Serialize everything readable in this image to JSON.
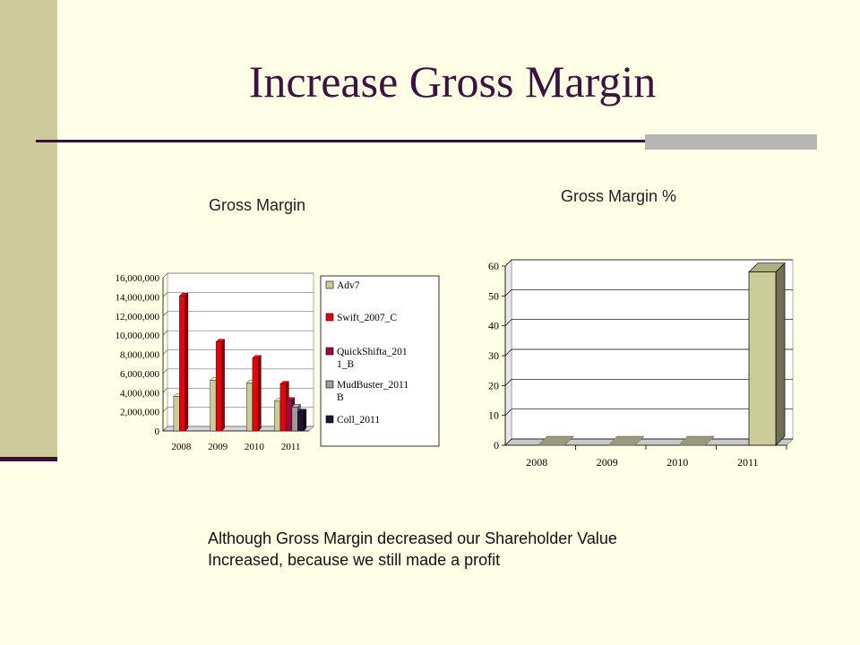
{
  "slide": {
    "title": "Increase Gross Margin",
    "note_lines": [
      "Although Gross Margin decreased our Shareholder Value",
      "Increased, because we still made a profit"
    ]
  },
  "chart_data": [
    {
      "type": "bar",
      "title": "Gross Margin",
      "categories": [
        "2008",
        "2009",
        "2010",
        "2011"
      ],
      "ylim": [
        0,
        16000000
      ],
      "yticks": [
        "0",
        "2,000,000",
        "4,000,000",
        "6,000,000",
        "8,000,000",
        "10,000,000",
        "12,000,000",
        "14,000,000",
        "16,000,000"
      ],
      "legend_position": "right",
      "grid": true,
      "series": [
        {
          "name": "Adv7",
          "color": "#CCCC99",
          "values": [
            3600000,
            5300000,
            5000000,
            3100000
          ]
        },
        {
          "name": "Swift_2007_C",
          "color": "#E8000C",
          "values": [
            14100000,
            9300000,
            7600000,
            4900000
          ]
        },
        {
          "name": "QuickShifta_2011_B",
          "color": "#9E0A3C",
          "values": [
            null,
            null,
            null,
            3200000
          ]
        },
        {
          "name": "MudBuster_2011B",
          "color": "#9C9C9C",
          "values": [
            null,
            null,
            null,
            2500000
          ]
        },
        {
          "name": "Coll_2011",
          "color": "#1E1530",
          "values": [
            null,
            null,
            null,
            2000000
          ]
        }
      ],
      "legend_lines": [
        [
          "Adv7"
        ],
        [
          "Swift_2007_C"
        ],
        [
          "QuickShifta_201",
          "1_B"
        ],
        [
          "MudBuster_2011",
          "B"
        ],
        [
          "Coll_2011"
        ]
      ]
    },
    {
      "type": "bar",
      "title": "Gross Margin %",
      "categories": [
        "2008",
        "2009",
        "2010",
        "2011"
      ],
      "ylim": [
        0,
        60
      ],
      "yticks": [
        "0",
        "10",
        "20",
        "30",
        "40",
        "50",
        "60"
      ],
      "grid": true,
      "series": [
        {
          "color": "#CCCC99",
          "values": [
            0,
            0,
            0,
            58
          ]
        }
      ]
    }
  ]
}
